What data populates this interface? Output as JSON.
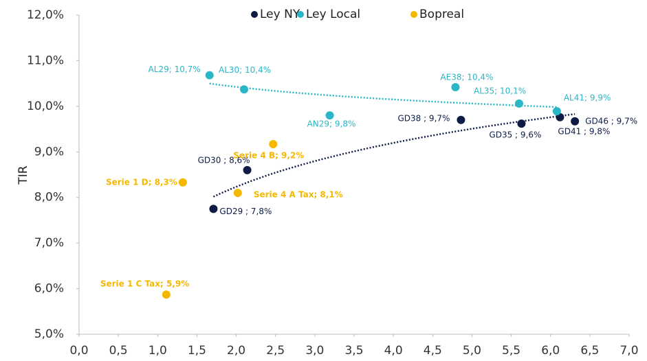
{
  "chart_data": {
    "type": "scatter",
    "y_label": "TIR",
    "legend": "top",
    "xlim": [
      0,
      7
    ],
    "xticks": [
      {
        "value": 0,
        "label": "0,0"
      },
      {
        "value": 0.5,
        "label": "0,5"
      },
      {
        "value": 1,
        "label": "1,0"
      },
      {
        "value": 1.5,
        "label": "1,5"
      },
      {
        "value": 2,
        "label": "2,0"
      },
      {
        "value": 2.5,
        "label": "2,5"
      },
      {
        "value": 3,
        "label": "3,0"
      },
      {
        "value": 3.5,
        "label": "3,5"
      },
      {
        "value": 4,
        "label": "4,0"
      },
      {
        "value": 4.5,
        "label": "4,5"
      },
      {
        "value": 5,
        "label": "5,0"
      },
      {
        "value": 5.5,
        "label": "5,5"
      },
      {
        "value": 6,
        "label": "6,0"
      },
      {
        "value": 6.5,
        "label": "6,5"
      },
      {
        "value": 7,
        "label": "7,0"
      }
    ],
    "ylim": [
      5,
      12
    ],
    "yticks": [
      {
        "value": 5,
        "label": "5,0%"
      },
      {
        "value": 6,
        "label": "6,0%"
      },
      {
        "value": 7,
        "label": "7,0%"
      },
      {
        "value": 8,
        "label": "8,0%"
      },
      {
        "value": 9,
        "label": "9,0%"
      },
      {
        "value": 10,
        "label": "10,0%"
      },
      {
        "value": 11,
        "label": "11,0%"
      },
      {
        "value": 12,
        "label": "12,0%"
      }
    ],
    "series": [
      {
        "name": "Ley NY",
        "color": "#0d1b45",
        "trendline": true,
        "x": [
          1.71,
          2.14,
          4.86,
          5.63,
          6.12,
          6.31
        ],
        "values": [
          7.75,
          8.6,
          9.7,
          9.62,
          9.76,
          9.67
        ],
        "value_labels": [
          "GD29 ; 7,8%",
          "GD30 ; 8,6%",
          "GD38 ; 9,7%",
          "GD35 ; 9,6%",
          "GD41 ; 9,8%",
          "GD46 ; 9,7%"
        ]
      },
      {
        "name": "Ley Local",
        "color": "#29b6c6",
        "trendline": true,
        "x": [
          1.66,
          2.1,
          3.19,
          4.79,
          5.6,
          6.08
        ],
        "values": [
          10.68,
          10.37,
          9.8,
          10.42,
          10.06,
          9.89
        ],
        "value_labels": [
          "AL29; 10,7%",
          "AL30; 10,4%",
          "AN29; 9,8%",
          "AE38; 10,4%",
          "AL35; 10,1%",
          "AL41; 9,9%"
        ]
      },
      {
        "name": "Bopreal",
        "color": "#f5b800",
        "trendline": false,
        "bold_labels": true,
        "x": [
          1.32,
          2.47,
          2.02,
          1.11
        ],
        "values": [
          8.33,
          9.17,
          8.1,
          5.87
        ],
        "value_labels": [
          "Serie 1 D; 8,3%",
          "Serie 4 B; 9,2%",
          "Serie 4 A Tax; 8,1%",
          "Serie 1 C Tax; 5,9%"
        ]
      }
    ]
  }
}
